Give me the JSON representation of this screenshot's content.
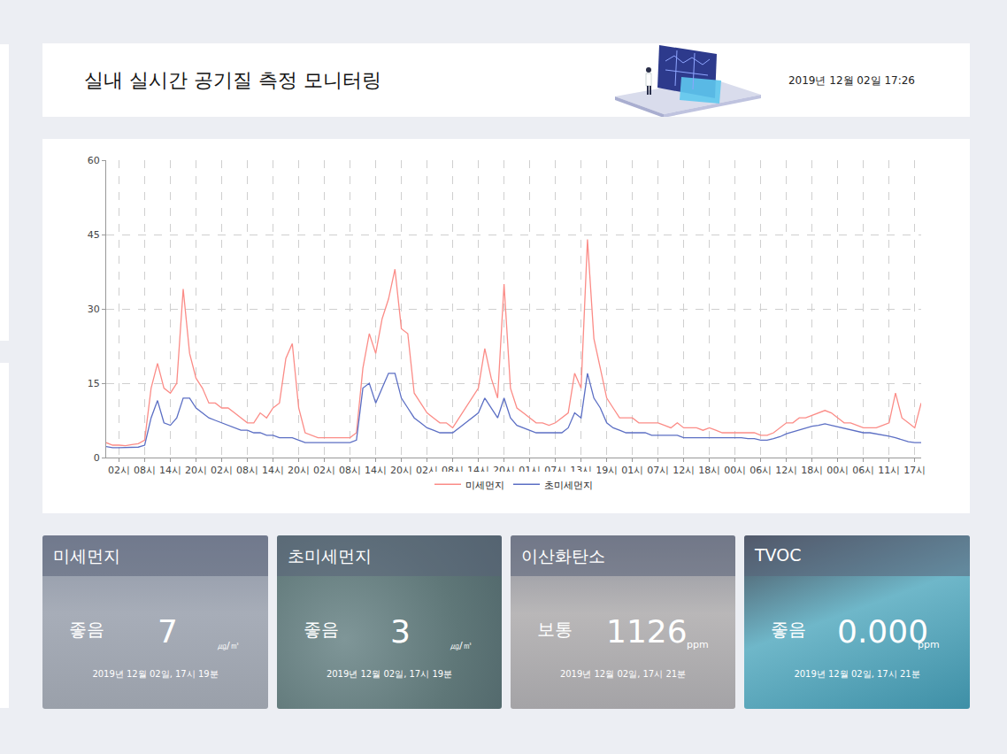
{
  "header": {
    "title": "실내 실시간 공기질 측정 모니터링",
    "datetime": "2019년 12월 02일 17:26"
  },
  "chart_data": {
    "type": "line",
    "categories": [
      null,
      null,
      "02시",
      null,
      null,
      null,
      "08시",
      null,
      null,
      null,
      "14시",
      null,
      null,
      null,
      "20시",
      null,
      null,
      null,
      "02시",
      null,
      null,
      null,
      "08시",
      null,
      null,
      null,
      "14시",
      null,
      null,
      null,
      "20시",
      null,
      null,
      null,
      "02시",
      null,
      null,
      null,
      "08시",
      null,
      null,
      null,
      "14시",
      null,
      null,
      null,
      "20시",
      null,
      null,
      null,
      "02시",
      null,
      null,
      null,
      "08시",
      null,
      null,
      null,
      "14시",
      null,
      null,
      null,
      "20시",
      null,
      null,
      null,
      "01시",
      null,
      null,
      null,
      "07시",
      null,
      null,
      null,
      "13시",
      null,
      null,
      null,
      "19시",
      null,
      null,
      null,
      "01시",
      null,
      null,
      null,
      "07시",
      null,
      null,
      null,
      "12시",
      null,
      null,
      null,
      "18시",
      null,
      null,
      null,
      "00시",
      null,
      null,
      null,
      "06시",
      null,
      null,
      null,
      "12시",
      null,
      null,
      null,
      "18시",
      null,
      null,
      null,
      "00시",
      null,
      null,
      null,
      "06시",
      null,
      null,
      null,
      "11시",
      null,
      null,
      null,
      "17시",
      null
    ],
    "series": [
      {
        "name": "미세먼지",
        "color": "#fb8c87",
        "values": [
          3,
          2.5,
          2.5,
          2.4,
          2.6,
          2.8,
          3.5,
          14,
          19,
          14,
          13,
          15,
          34,
          21,
          16,
          14,
          11,
          11,
          10,
          10,
          9,
          8,
          7,
          7,
          9,
          8,
          10,
          11,
          20,
          23,
          10,
          5,
          4.5,
          4,
          4,
          4,
          4,
          4,
          4,
          5,
          18,
          25,
          21,
          28,
          32,
          38,
          26,
          25,
          13,
          11,
          9,
          8,
          7,
          7,
          6,
          8,
          10,
          12,
          14,
          22,
          16,
          12,
          35,
          14,
          10,
          9,
          8,
          7,
          7,
          6.5,
          7,
          8,
          9,
          17,
          14,
          44,
          24,
          18,
          12,
          10,
          8,
          8,
          8,
          7,
          7,
          7,
          7,
          6.5,
          6,
          7,
          6,
          6,
          6,
          5.5,
          6,
          5.5,
          5,
          5,
          5,
          5,
          5,
          5,
          4.5,
          4.5,
          5,
          6,
          7,
          7,
          8,
          8,
          8.5,
          9,
          9.5,
          9,
          8,
          7,
          7,
          6.5,
          6,
          6,
          6,
          6.5,
          7,
          13,
          8,
          7,
          6,
          11
        ]
      },
      {
        "name": "초미세먼지",
        "color": "#5c6fc4",
        "values": [
          2.2,
          2,
          2,
          2,
          2,
          2.1,
          2.5,
          8,
          11.5,
          7,
          6.5,
          8,
          12,
          12,
          10,
          9,
          8,
          7.5,
          7,
          6.5,
          6,
          5.5,
          5.5,
          5,
          5,
          4.5,
          4.5,
          4,
          4,
          4,
          3.5,
          3,
          3,
          3,
          3,
          3,
          3,
          3,
          3,
          3.5,
          14,
          15,
          11,
          14,
          17,
          17,
          12,
          10,
          8,
          7,
          6,
          5.5,
          5,
          5,
          5,
          6,
          7,
          8,
          9,
          12,
          10,
          8,
          12,
          8,
          6.5,
          6,
          5.5,
          5,
          5,
          5,
          5,
          5,
          6,
          9,
          8,
          17,
          12,
          10,
          7,
          6,
          5.5,
          5,
          5,
          5,
          5,
          4.5,
          4.5,
          4.5,
          4.5,
          4.5,
          4,
          4,
          4,
          4,
          4,
          4,
          4,
          4,
          4,
          4,
          3.8,
          3.8,
          3.5,
          3.5,
          3.8,
          4.2,
          4.8,
          5.2,
          5.6,
          6,
          6.3,
          6.5,
          6.8,
          6.5,
          6.2,
          5.8,
          5.5,
          5.3,
          5,
          5,
          4.8,
          4.6,
          4.3,
          4,
          3.6,
          3.2,
          3,
          3
        ]
      }
    ],
    "ylim": [
      0,
      60
    ],
    "yticks": [
      0,
      15,
      30,
      45,
      60
    ],
    "grid": true,
    "legend": "bottom"
  },
  "cards": [
    {
      "title": "미세먼지",
      "status": "좋음",
      "value": "7",
      "unit": "㎍/㎥",
      "timestamp": "2019년 12월 02일, 17시 19분"
    },
    {
      "title": "초미세먼지",
      "status": "좋음",
      "value": "3",
      "unit": "㎍/㎥",
      "timestamp": "2019년 12월 02일, 17시 19분"
    },
    {
      "title": "이산화탄소",
      "status": "보통",
      "value": "1126",
      "unit": "ppm",
      "timestamp": "2019년 12월 02일, 17시 21분"
    },
    {
      "title": "TVOC",
      "status": "좋음",
      "value": "0.000",
      "unit": "ppm",
      "timestamp": "2019년 12월 02일, 17시 21분"
    }
  ]
}
